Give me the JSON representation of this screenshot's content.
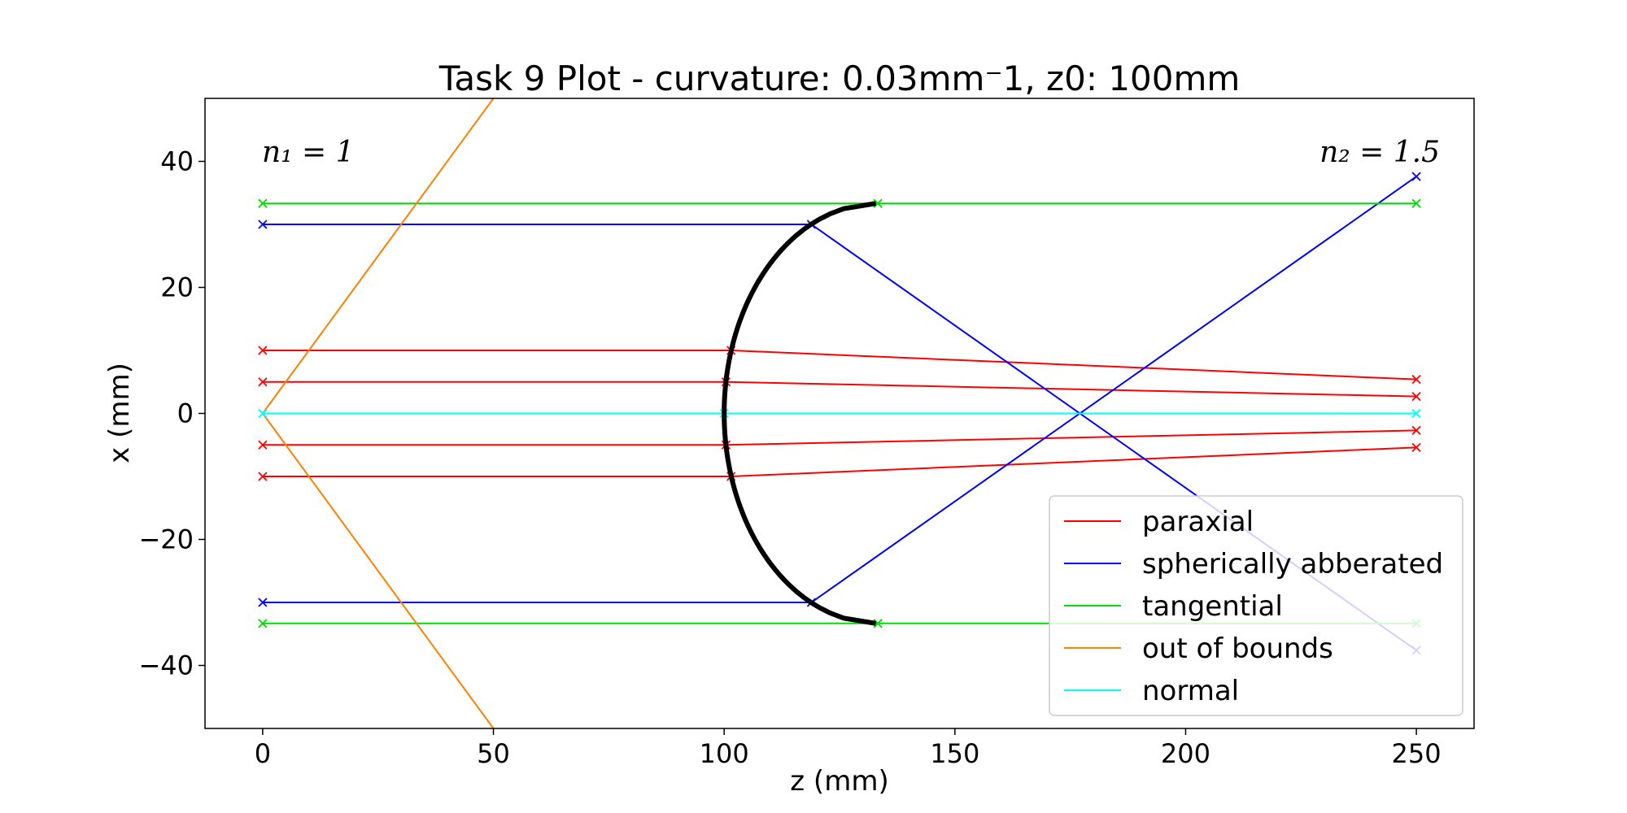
{
  "chart_data": {
    "type": "line",
    "title": "Task 9 Plot - curvature: 0.03mm⁻1, z0: 100mm",
    "xlabel": "z (mm)",
    "ylabel": "x (mm)",
    "xlim": [
      -12.5,
      262.5
    ],
    "ylim": [
      -50,
      50
    ],
    "x_ticks": [
      0,
      50,
      100,
      150,
      200,
      250
    ],
    "y_ticks": [
      -40,
      -20,
      0,
      20,
      40
    ],
    "x_tick_labels": [
      "0",
      "50",
      "100",
      "150",
      "200",
      "250"
    ],
    "y_tick_labels": [
      "−40",
      "−20",
      "0",
      "20",
      "40"
    ],
    "grid": false,
    "legend_position": "lower-right",
    "annotations": {
      "n1": "n₁ = 1",
      "n2": "n₂ = 1.5"
    },
    "surface": {
      "name": "spherical surface",
      "color": "#000000",
      "z0": 100,
      "curvature": 0.03,
      "aperture": 33.33
    },
    "series": [
      {
        "name": "paraxial",
        "color": "#ff0000",
        "rays": [
          [
            [
              0,
              10
            ],
            [
              101.5,
              10
            ],
            [
              250,
              5.4
            ]
          ],
          [
            [
              0,
              5
            ],
            [
              100.4,
              5
            ],
            [
              250,
              2.7
            ]
          ],
          [
            [
              0,
              -5
            ],
            [
              100.4,
              -5
            ],
            [
              250,
              -2.7
            ]
          ],
          [
            [
              0,
              -10
            ],
            [
              101.5,
              -10
            ],
            [
              250,
              -5.4
            ]
          ]
        ]
      },
      {
        "name": "spherically abberated",
        "color": "#0000ff",
        "rays": [
          [
            [
              0,
              30
            ],
            [
              118.9,
              30
            ],
            [
              250,
              -37.6
            ]
          ],
          [
            [
              0,
              -30
            ],
            [
              118.9,
              -30
            ],
            [
              250,
              37.6
            ]
          ]
        ]
      },
      {
        "name": "tangential",
        "color": "#00dd00",
        "rays": [
          [
            [
              0,
              33.33
            ],
            [
              133.3,
              33.33
            ],
            [
              250,
              33.33
            ]
          ],
          [
            [
              0,
              -33.33
            ],
            [
              133.3,
              -33.33
            ],
            [
              250,
              -33.33
            ]
          ]
        ]
      },
      {
        "name": "out of bounds",
        "color": "#ff8000",
        "rays": [
          [
            [
              0,
              0
            ],
            [
              50,
              50
            ]
          ],
          [
            [
              0,
              0
            ],
            [
              50,
              -50
            ]
          ]
        ]
      },
      {
        "name": "normal",
        "color": "#00ffff",
        "rays": [
          [
            [
              0,
              0
            ],
            [
              100,
              0
            ],
            [
              250,
              0
            ]
          ]
        ]
      }
    ]
  }
}
